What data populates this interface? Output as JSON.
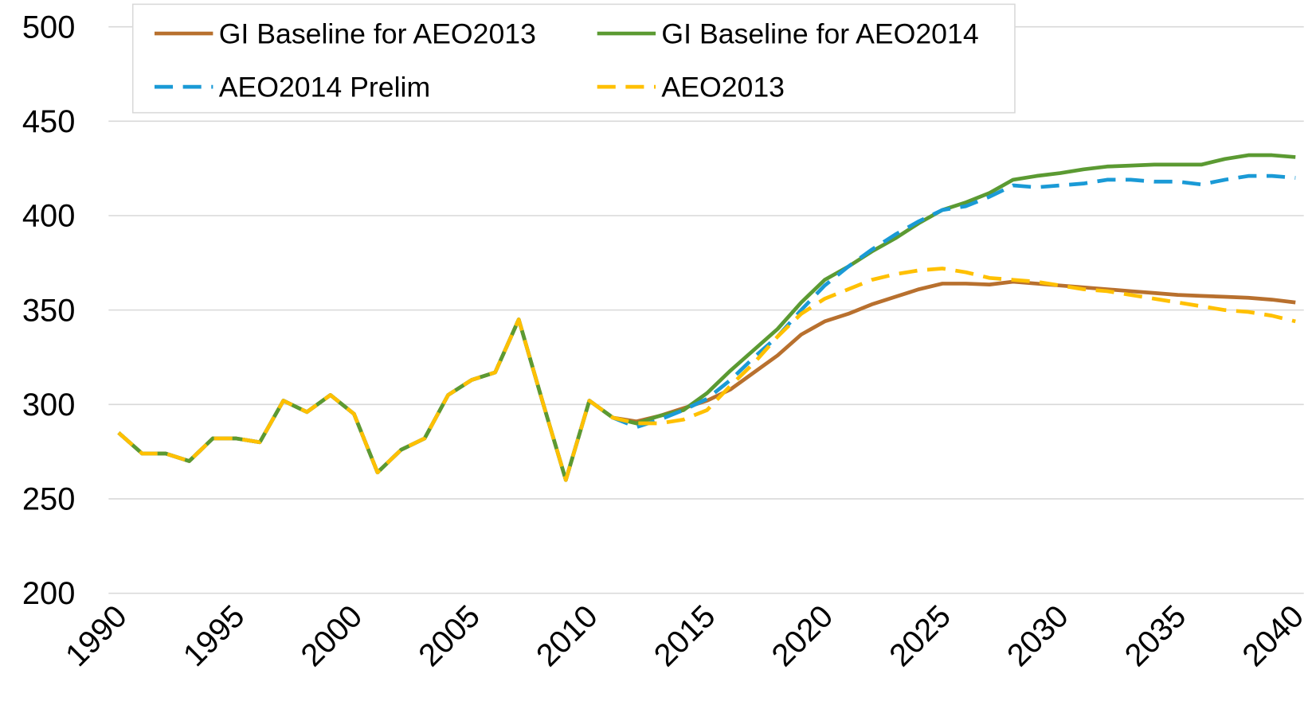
{
  "chart_data": {
    "type": "line",
    "x": [
      1990,
      1991,
      1992,
      1993,
      1994,
      1995,
      1996,
      1997,
      1998,
      1999,
      2000,
      2001,
      2002,
      2003,
      2004,
      2005,
      2006,
      2007,
      2008,
      2009,
      2010,
      2011,
      2012,
      2013,
      2014,
      2015,
      2016,
      2017,
      2018,
      2019,
      2020,
      2021,
      2022,
      2023,
      2024,
      2025,
      2026,
      2027,
      2028,
      2029,
      2030,
      2031,
      2032,
      2033,
      2034,
      2035,
      2036,
      2037,
      2038,
      2039,
      2040
    ],
    "series": [
      {
        "name": "GI Baseline for AEO2013",
        "color": "#b8702e",
        "style": "solid",
        "values": [
          285,
          274,
          274,
          270,
          282,
          282,
          280,
          302,
          296,
          305,
          295,
          264,
          276,
          282,
          305,
          313,
          317,
          345,
          302,
          260,
          302,
          293,
          291,
          294,
          298,
          302,
          308,
          317,
          326,
          337,
          344,
          348,
          353,
          357,
          361,
          364,
          364,
          363.5,
          365,
          364,
          363,
          362,
          361,
          360,
          359,
          358,
          357.5,
          357,
          356.5,
          355.5,
          354
        ]
      },
      {
        "name": "GI Baseline for AEO2014",
        "color": "#5b9a32",
        "style": "solid",
        "values": [
          285,
          274,
          274,
          270,
          282,
          282,
          280,
          302,
          296,
          305,
          295,
          264,
          276,
          282,
          305,
          313,
          317,
          345,
          302,
          260,
          302,
          293,
          290,
          294,
          297,
          306,
          318,
          329,
          340,
          354,
          366,
          373,
          381,
          388,
          396,
          403,
          407,
          412,
          419,
          421,
          422.5,
          424.5,
          426,
          426.5,
          427,
          427,
          427,
          430,
          432,
          432,
          431
        ]
      },
      {
        "name": "AEO2014 Prelim",
        "color": "#1a9ad6",
        "style": "dashed",
        "values": [
          285,
          274,
          274,
          270,
          282,
          282,
          280,
          302,
          296,
          305,
          295,
          264,
          276,
          282,
          305,
          313,
          317,
          345,
          302,
          260,
          302,
          293,
          288,
          292,
          297,
          303,
          313,
          325,
          336,
          350,
          363,
          373,
          382,
          390,
          397,
          403,
          405,
          410,
          416,
          415,
          416,
          417,
          419,
          419,
          418,
          418,
          416.5,
          419,
          421,
          421,
          420
        ]
      },
      {
        "name": "AEO2013",
        "color": "#ffc000",
        "style": "dashed",
        "values": [
          285,
          274,
          274,
          270,
          282,
          282,
          280,
          302,
          296,
          305,
          295,
          264,
          276,
          282,
          305,
          313,
          317,
          345,
          302,
          260,
          302,
          293,
          290,
          290,
          292,
          297,
          310,
          322,
          336,
          348,
          356,
          361,
          366,
          369,
          371,
          372,
          370,
          367,
          366,
          365,
          363,
          361,
          360,
          358,
          356,
          354,
          352,
          350,
          349,
          347,
          344
        ]
      }
    ],
    "xlim": [
      1990,
      2040
    ],
    "xticks": [
      1990,
      1995,
      2000,
      2005,
      2010,
      2015,
      2020,
      2025,
      2030,
      2035,
      2040
    ],
    "ylim": [
      200,
      500
    ],
    "yticks": [
      200,
      250,
      300,
      350,
      400,
      450,
      500
    ],
    "grid": true,
    "legend": "top"
  }
}
